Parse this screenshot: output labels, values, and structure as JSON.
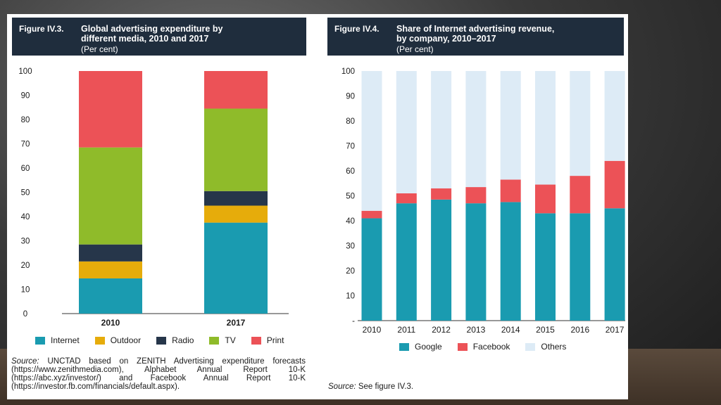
{
  "fig1": {
    "number": "Figure IV.3.",
    "title_line1": "Global advertising expenditure by",
    "title_line2": "different media, 2010 and 2017",
    "subtitle": "(Per cent)",
    "source_label": "Source:",
    "source_text": "UNCTAD based on ZENITH Advertising expenditure forecasts (https://www.zenithmedia.com), Alphabet Annual Report 10-K (https://abc.xyz/investor/) and Facebook Annual Report 10-K (https://investor.fb.com/financials/default.aspx)."
  },
  "fig2": {
    "number": "Figure IV.4.",
    "title_line1": "Share of Internet advertising revenue,",
    "title_line2": "by company, 2010–2017",
    "subtitle": "(Per cent)",
    "source_label": "Source:",
    "source_text": "See figure IV.3."
  },
  "chart_data": [
    {
      "type": "bar",
      "stacked": true,
      "categories": [
        "2010",
        "2017"
      ],
      "series": [
        {
          "name": "Internet",
          "color": "#1a9bb0",
          "values": [
            14.5,
            37.5
          ]
        },
        {
          "name": "Outdoor",
          "color": "#e6ac0b",
          "values": [
            7,
            7
          ]
        },
        {
          "name": "Radio",
          "color": "#26364a",
          "values": [
            7,
            6
          ]
        },
        {
          "name": "TV",
          "color": "#8fbb2a",
          "values": [
            40,
            34
          ]
        },
        {
          "name": "Print",
          "color": "#ec5257",
          "values": [
            31.5,
            15.5
          ]
        }
      ],
      "yticks": [
        "0",
        "10",
        "20",
        "30",
        "40",
        "50",
        "60",
        "70",
        "80",
        "90",
        "100"
      ],
      "ylim": [
        0,
        100
      ],
      "grid": false,
      "legend": "bottom"
    },
    {
      "type": "bar",
      "stacked": true,
      "categories": [
        "2010",
        "2011",
        "2012",
        "2013",
        "2014",
        "2015",
        "2016",
        "2017"
      ],
      "series": [
        {
          "name": "Google",
          "color": "#1a9bb0",
          "values": [
            41,
            47,
            48.5,
            47,
            47.5,
            43,
            43,
            45
          ]
        },
        {
          "name": "Facebook",
          "color": "#ec5257",
          "values": [
            3,
            4,
            4.5,
            6.5,
            9,
            11.5,
            15,
            19
          ]
        },
        {
          "name": "Others",
          "color": "#ddebf6",
          "values": [
            56,
            49,
            47,
            46.5,
            43.5,
            45.5,
            42,
            36
          ]
        }
      ],
      "yticks": [
        "-",
        "10",
        "20",
        "30",
        "40",
        "50",
        "60",
        "70",
        "80",
        "90",
        "100"
      ],
      "ylim": [
        0,
        100
      ],
      "grid": false,
      "legend": "bottom"
    }
  ]
}
